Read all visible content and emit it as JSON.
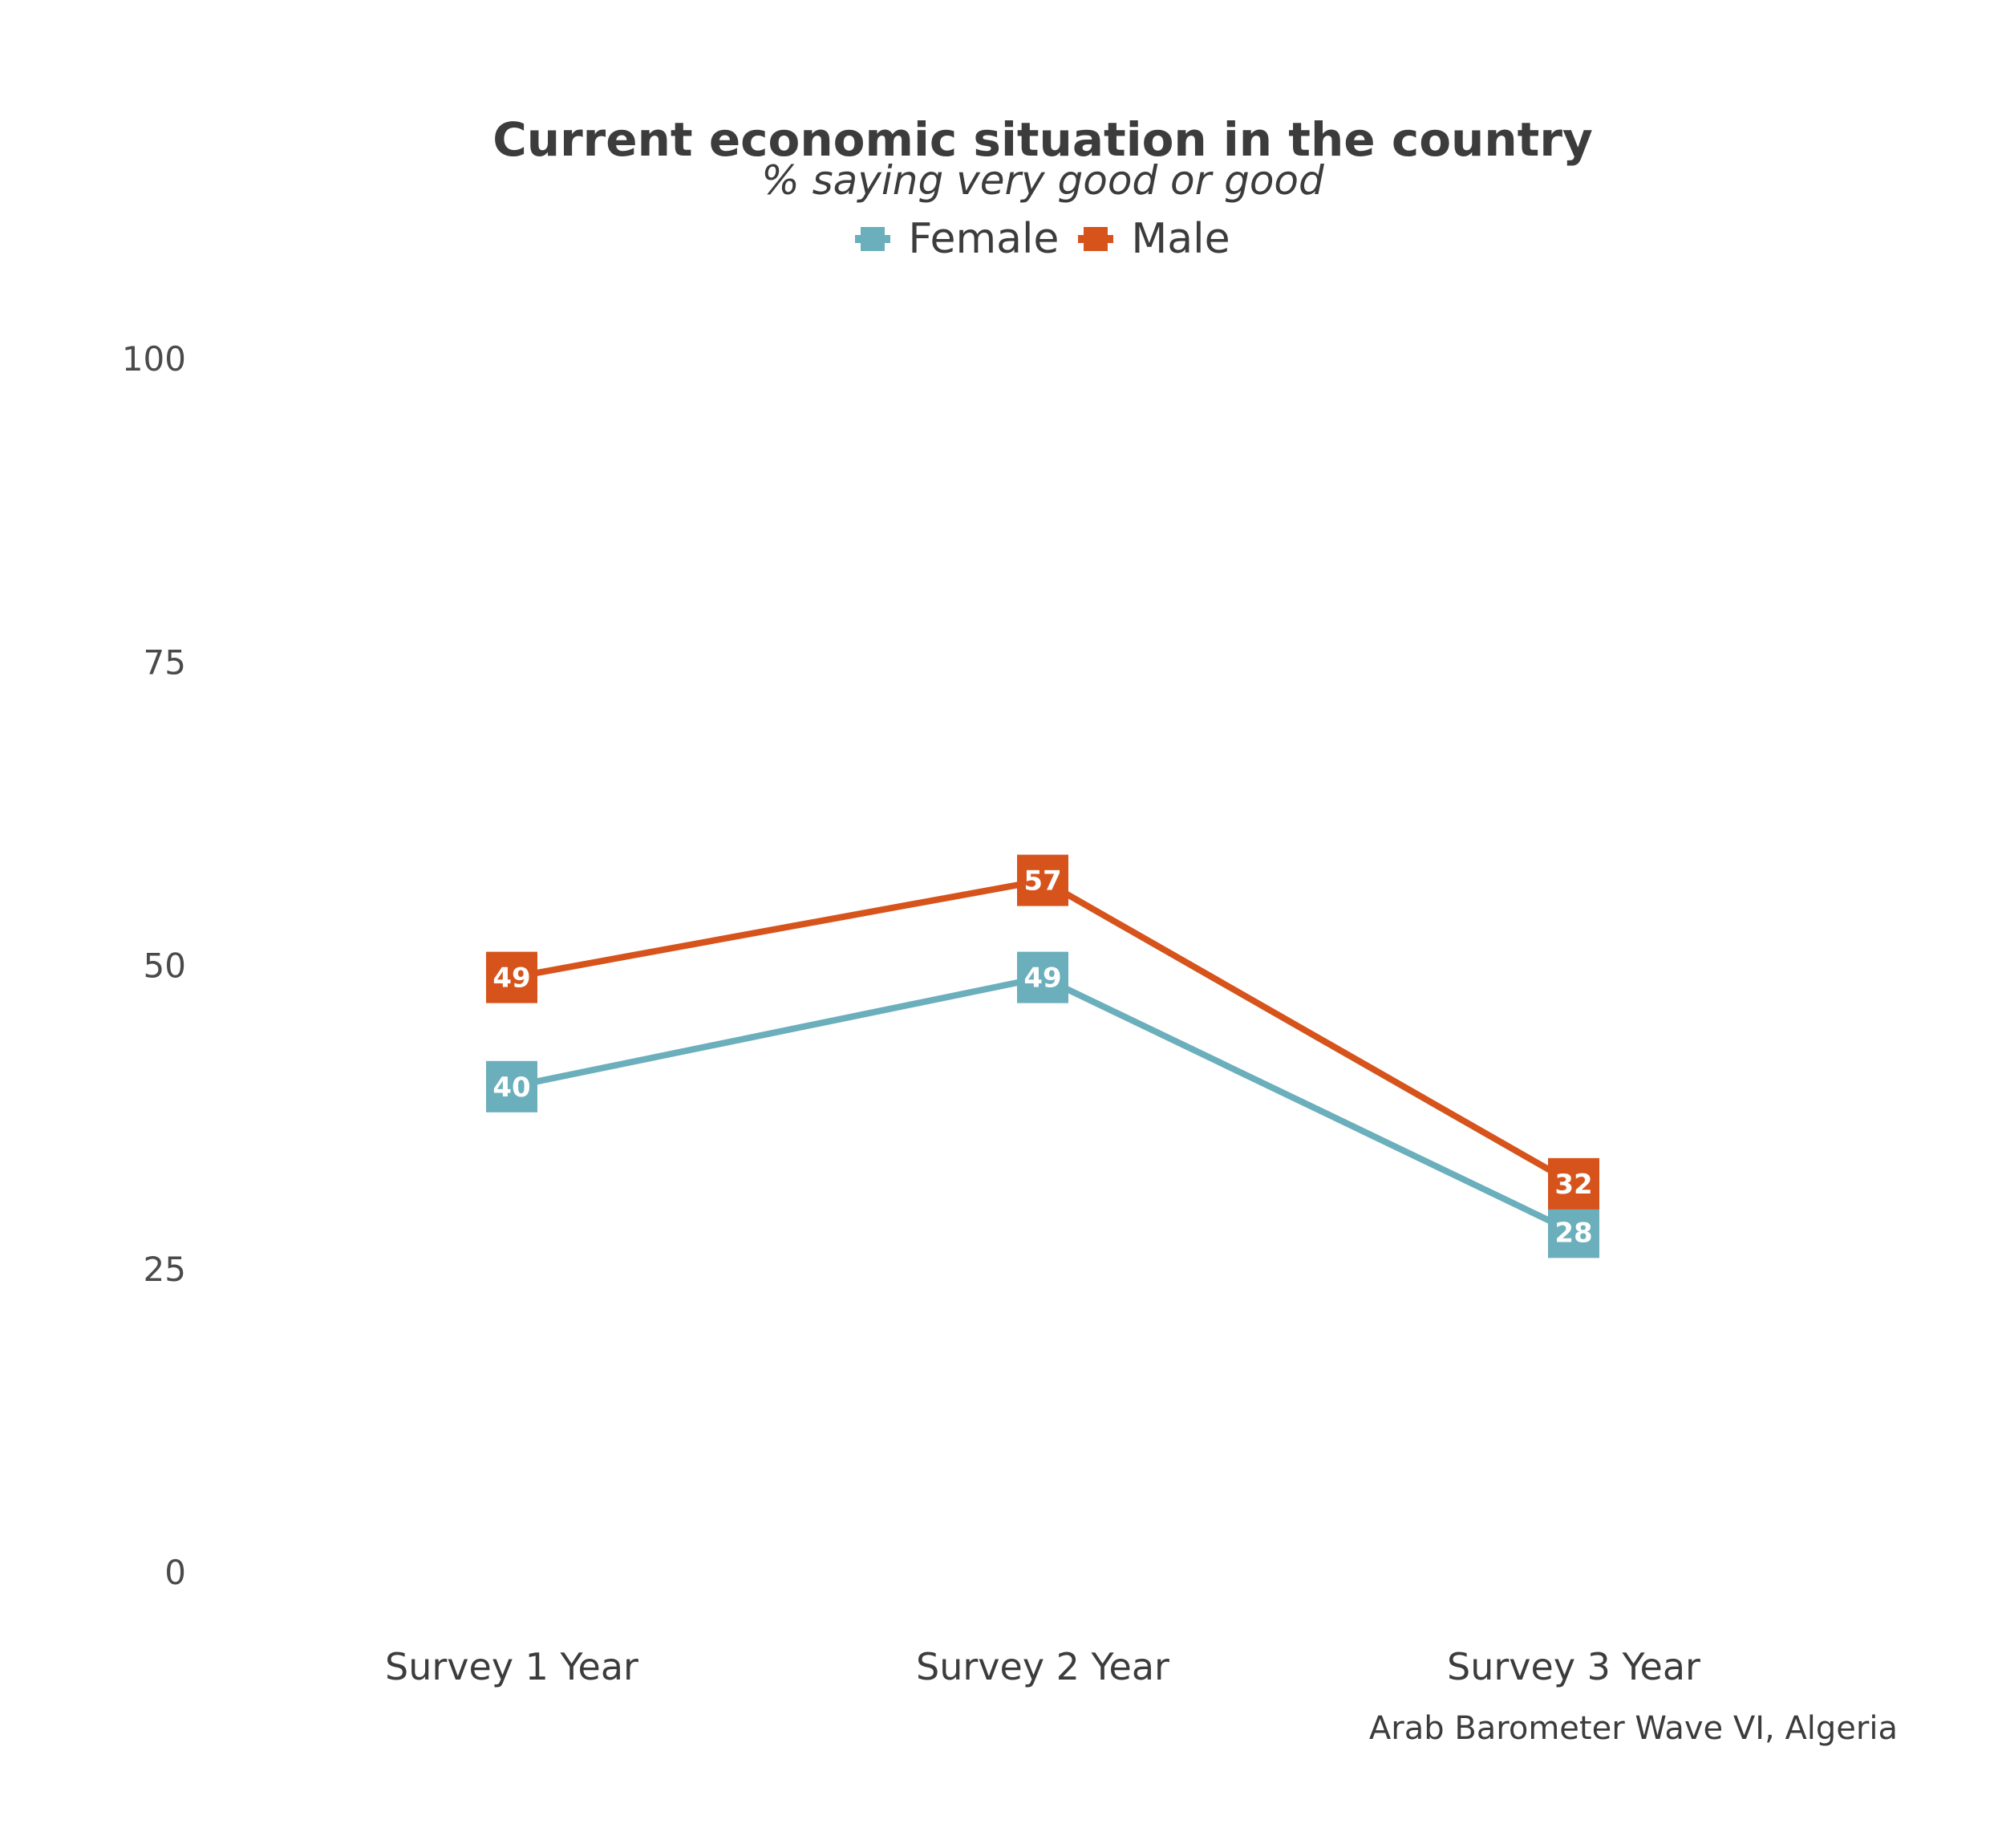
{
  "chart_data": {
    "type": "line",
    "title": "Current economic situation in the country",
    "subtitle": "% saying very good or good",
    "caption": "Arab Barometer Wave VI, Algeria",
    "categories": [
      "Survey 1 Year",
      "Survey 2 Year",
      "Survey 3 Year"
    ],
    "series": [
      {
        "name": "Female",
        "color": "#6aafbb",
        "values": [
          40,
          49,
          28
        ]
      },
      {
        "name": "Male",
        "color": "#d6541c",
        "values": [
          49,
          57,
          32
        ]
      }
    ],
    "ylim": [
      0,
      100
    ],
    "yticks": [
      "0",
      "25",
      "50",
      "75",
      "100"
    ],
    "xlabel": "",
    "ylabel": "",
    "grid": false,
    "legend_position": "top"
  }
}
